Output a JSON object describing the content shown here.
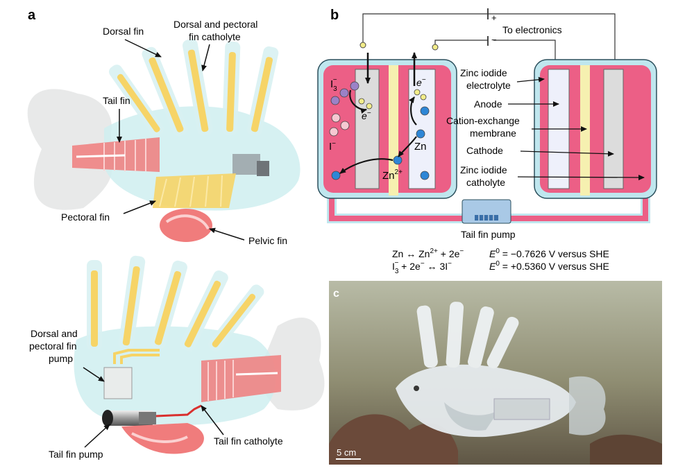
{
  "panels": {
    "a": {
      "letter": "a",
      "top_labels": {
        "dorsal_fin": "Dorsal fin",
        "catholyte_line1": "Dorsal and pectoral",
        "catholyte_line2": "fin catholyte",
        "tail_fin": "Tail fin",
        "pectoral_fin": "Pectoral fin",
        "pelvic_fin": "Pelvic fin"
      },
      "bottom_labels": {
        "pump_line1": "Dorsal and",
        "pump_line2": "pectoral fin",
        "pump_line3": "pump",
        "tail_fin_pump": "Tail fin pump",
        "tail_fin_catholyte": "Tail fin catholyte"
      }
    },
    "b": {
      "letter": "b",
      "plus": "+",
      "minus": "−",
      "to_electronics": "To electronics",
      "left_cell": {
        "i3": "I",
        "i3_sub": "3",
        "i3_sup": "−",
        "i_minus": "I",
        "i_minus_sup": "−",
        "e_left": "e",
        "e_left_sup": "−",
        "e_right": "e",
        "e_right_sup": "−",
        "zn": "Zn",
        "zn2": "Zn",
        "zn2_sup": "2+"
      },
      "labels": {
        "zinc_iodide_electrolyte_1": "Zinc iodide",
        "zinc_iodide_electrolyte_2": "electrolyte",
        "anode": "Anode",
        "cation_exchange_1": "Cation-exchange",
        "cation_exchange_2": "membrane",
        "cathode": "Cathode",
        "zinc_iodide_catholyte_1": "Zinc iodide",
        "zinc_iodide_catholyte_2": "catholyte",
        "tail_fin_pump": "Tail fin pump"
      },
      "equations": {
        "eq1_lhs": "Zn ↔ Zn",
        "eq1_sup": "2+",
        "eq1_rhs": " + 2e",
        "eq1_rhs_sup": "−",
        "eq1_e0": "E",
        "eq1_e0_sup": "0",
        "eq1_value": " = −0.7626 V versus SHE",
        "eq2_i": "I",
        "eq2_sub": "3",
        "eq2_sup": "−",
        "eq2_mid": " + 2e",
        "eq2_mid_sup": "−",
        "eq2_rhs": " ↔ 3I",
        "eq2_rhs_sup": "−",
        "eq2_e0": "E",
        "eq2_e0_sup": "0",
        "eq2_value": " = +0.5360 V versus SHE"
      }
    },
    "c": {
      "letter": "c",
      "scale_bar": "5 cm"
    }
  },
  "colors": {
    "pink": "#ec5f86",
    "salmon": "#f26f6f",
    "yellow": "#f6d467",
    "light_blue": "#bfe6ee",
    "membrane": "#f6f0b0",
    "electrode_gray": "#dcdcdc",
    "anode_blue": "#eef0fb",
    "zn_blue": "#2e86d6",
    "iodine_purple": "#9b82c7",
    "ion_pink": "#f6c9d2",
    "e_yellow": "#f2ec8a",
    "pump_blue": "#a9c9e6"
  }
}
